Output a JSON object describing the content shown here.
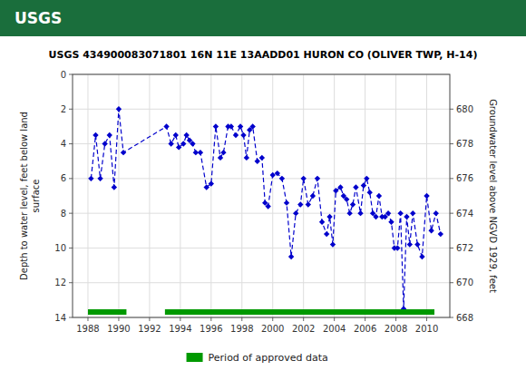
{
  "chart_data": {
    "type": "line",
    "title": "USGS 434900083071801 16N 11E 13AADD01 HURON CO (OLIVER TWP, H-14)",
    "annotations": [
      "USGS"
    ],
    "y_label": "Depth to water level, feet below land\nsurface",
    "y2_label": "Groundwater level above NGVD 1929, feet",
    "xlim": [
      1987.0,
      2011.5
    ],
    "xticks": [
      1988,
      1990,
      1992,
      1994,
      1996,
      1998,
      2000,
      2002,
      2004,
      2006,
      2008,
      2010
    ],
    "ylim": [
      14,
      0
    ],
    "yticks": [
      0,
      2,
      4,
      6,
      8,
      10,
      12,
      14
    ],
    "y2lim": [
      668,
      682
    ],
    "y2ticks": [
      668,
      670,
      672,
      674,
      676,
      678,
      680
    ],
    "grid": true,
    "legend": "bottom",
    "x": [
      1988.2,
      1988.5,
      1988.8,
      1989.1,
      1989.4,
      1989.7,
      1990.0,
      1990.3,
      1993.1,
      1993.4,
      1993.7,
      1993.9,
      1994.2,
      1994.4,
      1994.6,
      1994.8,
      1995.0,
      1995.3,
      1995.7,
      1996.0,
      1996.3,
      1996.6,
      1996.8,
      1997.1,
      1997.3,
      1997.6,
      1997.9,
      1998.1,
      1998.3,
      1998.5,
      1998.7,
      1999.0,
      1999.3,
      1999.5,
      1999.7,
      2000.0,
      2000.3,
      2000.6,
      2000.9,
      2001.2,
      2001.5,
      2001.8,
      2002.0,
      2002.3,
      2002.6,
      2002.9,
      2003.2,
      2003.5,
      2003.7,
      2003.9,
      2004.1,
      2004.4,
      2004.6,
      2004.8,
      2005.0,
      2005.2,
      2005.4,
      2005.7,
      2005.9,
      2006.1,
      2006.3,
      2006.5,
      2006.7,
      2006.9,
      2007.1,
      2007.3,
      2007.5,
      2007.7,
      2007.9,
      2008.1,
      2008.3,
      2008.5,
      2008.7,
      2008.9,
      2009.1,
      2009.4,
      2009.7,
      2010.0,
      2010.3,
      2010.6,
      2010.9
    ],
    "series": [
      {
        "type": "line",
        "color": "#0000cc",
        "line_style": "dashed",
        "marker": "diamond",
        "values": [
          6.0,
          3.5,
          6.0,
          4.0,
          3.5,
          6.5,
          2.0,
          4.5,
          3.0,
          4.0,
          3.5,
          4.2,
          4.0,
          3.5,
          3.8,
          4.0,
          4.5,
          4.5,
          6.5,
          6.3,
          3.0,
          4.8,
          4.5,
          3.0,
          3.0,
          3.5,
          3.0,
          3.5,
          4.8,
          3.2,
          3.0,
          5.0,
          4.8,
          7.4,
          7.6,
          5.8,
          5.7,
          6.0,
          7.4,
          10.5,
          8.0,
          7.5,
          6.0,
          7.5,
          7.0,
          6.0,
          8.5,
          9.2,
          8.2,
          9.8,
          6.7,
          6.5,
          7.0,
          7.2,
          8.0,
          7.5,
          6.5,
          8.0,
          6.4,
          6.0,
          6.8,
          8.0,
          8.2,
          7.0,
          8.2,
          8.2,
          8.0,
          8.5,
          10.0,
          10.0,
          8.0,
          13.5,
          8.2,
          9.8,
          8.0,
          9.8,
          10.5,
          7.0,
          9.0,
          8.0,
          9.2
        ]
      },
      {
        "type": "range",
        "name": "Period of approved data",
        "color": "#009900",
        "ranges": [
          [
            1988.0,
            1990.5
          ],
          [
            1993.0,
            2010.5
          ]
        ]
      }
    ]
  }
}
